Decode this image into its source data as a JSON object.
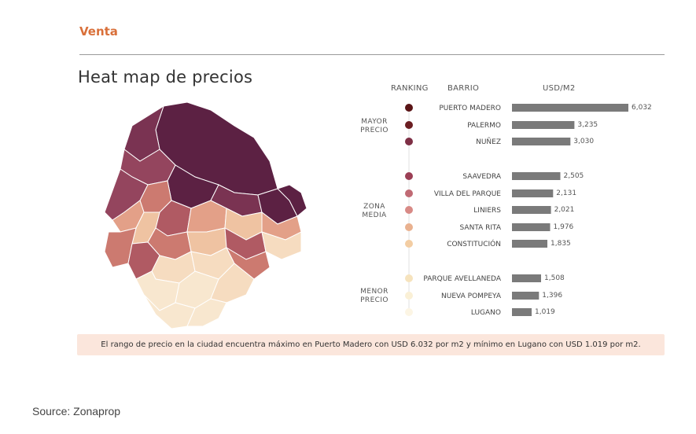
{
  "header": {
    "section": "Venta",
    "title": "Heat map de precios"
  },
  "columns": {
    "ranking": "RANKING",
    "barrio": "BARRIO",
    "value": "USD/M2"
  },
  "groups": [
    {
      "label_line1": "MAYOR",
      "label_line2": "PRECIO"
    },
    {
      "label_line1": "ZONA",
      "label_line2": "MEDIA"
    },
    {
      "label_line1": "MENOR",
      "label_line2": "PRECIO"
    }
  ],
  "chart_data": {
    "type": "bar",
    "orientation": "horizontal",
    "title": "Heat map de precios",
    "ylabel": "USD/M2",
    "categories": [
      "PUERTO MADERO",
      "PALERMO",
      "NUÑEZ",
      "SAAVEDRA",
      "VILLA DEL PARQUE",
      "LINIERS",
      "SANTA RITA",
      "CONSTITUCIÓN",
      "PARQUE AVELLANEDA",
      "NUEVA POMPEYA",
      "LUGANO"
    ],
    "values": [
      6032,
      3235,
      3030,
      2505,
      2131,
      2021,
      1976,
      1835,
      1508,
      1396,
      1019
    ],
    "value_labels": [
      "6,032",
      "3,235",
      "3,030",
      "2,505",
      "2,131",
      "2,021",
      "1,976",
      "1,835",
      "1,508",
      "1,396",
      "1,019"
    ],
    "group_index": [
      0,
      0,
      0,
      1,
      1,
      1,
      1,
      1,
      2,
      2,
      2
    ],
    "dot_colors": [
      "#5a1416",
      "#6b1e22",
      "#7e2f45",
      "#9b3f55",
      "#c06a74",
      "#d88a86",
      "#e9b18f",
      "#f3cda3",
      "#f6e3bd",
      "#faf0d6",
      "#fcf5e4"
    ],
    "bar_color": "#7a7a7a",
    "xlim": [
      0,
      6032
    ]
  },
  "footnote": "El rango de precio en la ciudad encuentra máximo en Puerto Madero con USD 6.032 por m2 y mínimo en Lugano con USD 1.019 por m2.",
  "source": "Source: Zonaprop",
  "map": {
    "palette": [
      "#5c2143",
      "#7a3352",
      "#94455e",
      "#b05a63",
      "#cc7a70",
      "#e3a088",
      "#efc3a2",
      "#f6dcc0",
      "#f8e7cf"
    ]
  }
}
